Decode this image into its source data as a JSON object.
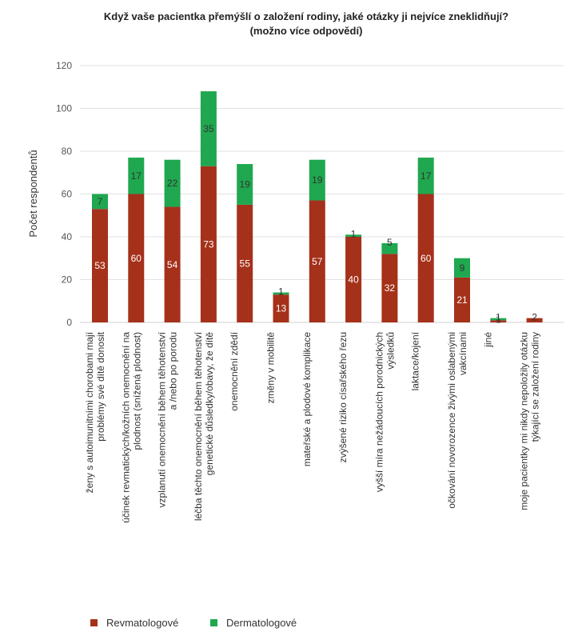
{
  "chart_data": {
    "type": "bar",
    "stacked": true,
    "title": "Když vaše pacientka přemýšlí o založení rodiny, jaké otázky ji nejvíce zneklidňují?",
    "subtitle": "(možno více odpovědí)",
    "ylabel": "Počet respondentů",
    "xlabel": "",
    "ylim": [
      0,
      120
    ],
    "yticks": [
      0,
      20,
      40,
      60,
      80,
      100,
      120
    ],
    "grid": true,
    "legend_position": "bottom",
    "categories": [
      [
        "ženy s autoimunitními chorobami mají",
        "problémy své dítě donosit"
      ],
      [
        "účinek revmatických/kožních onemocnění na",
        "plodnost (snížená plodnost)"
      ],
      [
        "vzplanutí onemocnění během těhotenství",
        "a /nebo po porodu"
      ],
      [
        "léčba těchto onemocnění během těhotenství",
        "genetické důsledky/obavy, že dítě"
      ],
      [
        "onemocnění zdědí"
      ],
      [
        "změny v mobilitě"
      ],
      [
        "mateřské a plodové komplikace"
      ],
      [
        "zvýšené riziko císařského řezu"
      ],
      [
        "vyšší míra nežádoucích porodnických",
        "výsledků"
      ],
      [
        "laktace/kojení"
      ],
      [
        "očkování novorozence živými oslabenými",
        "vakcínami"
      ],
      [
        "jiné"
      ],
      [
        "moje pacientky mi nikdy nepoložily otázku",
        "týkající se založení rodiny"
      ]
    ],
    "series": [
      {
        "name": "Revmatologové",
        "color": "#a5311a",
        "values": [
          53,
          60,
          54,
          73,
          55,
          13,
          57,
          40,
          32,
          60,
          21,
          1,
          2
        ]
      },
      {
        "name": "Dermatologové",
        "color": "#1fa84f",
        "values": [
          7,
          17,
          22,
          35,
          19,
          1,
          19,
          1,
          5,
          17,
          9,
          1,
          0
        ]
      }
    ]
  }
}
